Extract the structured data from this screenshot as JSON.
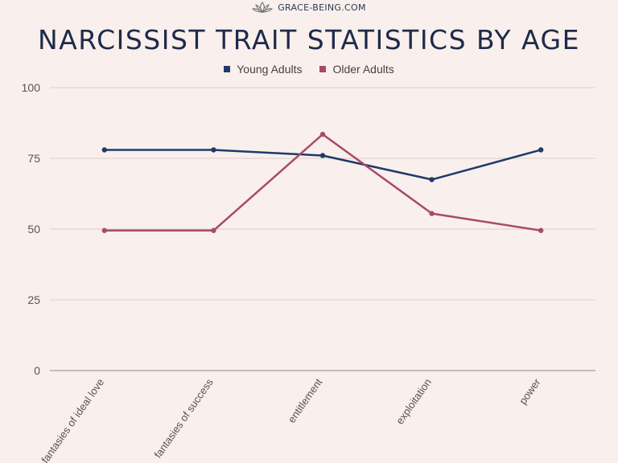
{
  "brand": {
    "text": "GRACE-BEING.COM",
    "logo_icon": "lotus-icon"
  },
  "chart_data": {
    "type": "line",
    "title": "NARCISSIST TRAIT STATISTICS BY AGE",
    "categories": [
      "fantasies of ideal love",
      "fantasies of success",
      "entitlement",
      "exploitation",
      "power"
    ],
    "series": [
      {
        "name": "Young Adults",
        "color": "#1f3a68",
        "values": [
          78,
          78,
          76,
          67.5,
          78
        ]
      },
      {
        "name": "Older Adults",
        "color": "#a84a6c",
        "values": [
          49.5,
          49.5,
          83.5,
          55.5,
          49.5
        ]
      }
    ],
    "ylim": [
      0,
      100
    ],
    "yticks": [
      "0",
      "25",
      "50",
      "75",
      "100"
    ],
    "xlabel": "",
    "ylabel": "",
    "grid": true,
    "legend_position": "top-center"
  }
}
